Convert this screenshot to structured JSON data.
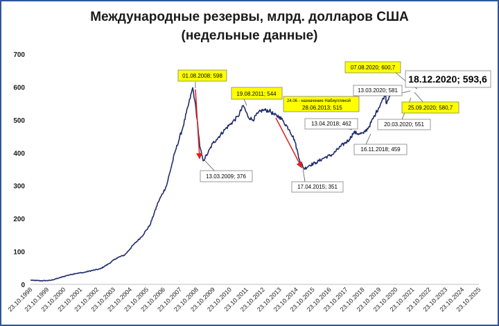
{
  "chart_data": {
    "type": "line",
    "title_line1": "Международные резервы, млрд. долларов США",
    "title_line2": "(недельные данные)",
    "xlabel": "",
    "ylabel": "",
    "ylim": [
      0,
      700
    ],
    "yticks": [
      "0",
      "100",
      "200",
      "300",
      "400",
      "500",
      "600",
      "700"
    ],
    "xticks": [
      "23.10.1998",
      "23.10.1999",
      "23.10.2000",
      "23.10.2001",
      "23.10.2002",
      "23.10.2003",
      "23.10.2004",
      "23.10.2005",
      "23.10.2006",
      "23.10.2007",
      "23.10.2008",
      "23.10.2009",
      "23.10.2010",
      "23.10.2011",
      "23.10.2012",
      "23.10.2013",
      "23.10.2014",
      "23.10.2015",
      "23.10.2016",
      "23.10.2017",
      "23.10.2018",
      "23.10.2019",
      "23.10.2020",
      "23.10.2021",
      "23.10.2022",
      "23.10.2023",
      "23.10.2024",
      "23.10.2025"
    ],
    "xlim": [
      1998.81,
      2025.81
    ],
    "grid": false,
    "series": [
      {
        "color": "#1f2a6b",
        "points": [
          [
            1998.81,
            13
          ],
          [
            1999.0,
            12
          ],
          [
            1999.5,
            11
          ],
          [
            2000.0,
            12
          ],
          [
            2000.5,
            19
          ],
          [
            2001.0,
            27
          ],
          [
            2001.5,
            33
          ],
          [
            2002.0,
            36
          ],
          [
            2002.5,
            42
          ],
          [
            2003.0,
            47
          ],
          [
            2003.5,
            62
          ],
          [
            2004.0,
            80
          ],
          [
            2004.5,
            90
          ],
          [
            2005.0,
            120
          ],
          [
            2005.5,
            145
          ],
          [
            2006.0,
            180
          ],
          [
            2006.5,
            250
          ],
          [
            2007.0,
            300
          ],
          [
            2007.5,
            400
          ],
          [
            2008.0,
            480
          ],
          [
            2008.58,
            598
          ],
          [
            2008.7,
            560
          ],
          [
            2008.85,
            500
          ],
          [
            2009.0,
            420
          ],
          [
            2009.2,
            376
          ],
          [
            2009.5,
            400
          ],
          [
            2009.8,
            430
          ],
          [
            2010.0,
            440
          ],
          [
            2010.5,
            470
          ],
          [
            2010.9,
            490
          ],
          [
            2011.3,
            510
          ],
          [
            2011.63,
            544
          ],
          [
            2011.9,
            510
          ],
          [
            2012.2,
            500
          ],
          [
            2012.5,
            520
          ],
          [
            2012.8,
            530
          ],
          [
            2013.2,
            528
          ],
          [
            2013.49,
            515
          ],
          [
            2013.8,
            510
          ],
          [
            2014.0,
            498
          ],
          [
            2014.4,
            470
          ],
          [
            2014.7,
            440
          ],
          [
            2015.0,
            380
          ],
          [
            2015.29,
            351
          ],
          [
            2015.6,
            362
          ],
          [
            2016.0,
            370
          ],
          [
            2016.5,
            385
          ],
          [
            2017.0,
            395
          ],
          [
            2017.5,
            420
          ],
          [
            2018.0,
            440
          ],
          [
            2018.28,
            462
          ],
          [
            2018.6,
            458
          ],
          [
            2018.87,
            459
          ],
          [
            2019.2,
            480
          ],
          [
            2019.6,
            520
          ],
          [
            2019.9,
            550
          ],
          [
            2020.2,
            581
          ],
          [
            2020.22,
            551
          ],
          [
            2020.4,
            570
          ],
          [
            2020.6,
            600.7
          ],
          [
            2020.73,
            580.7
          ],
          [
            2020.96,
            593.6
          ]
        ]
      }
    ],
    "annotations": {
      "peak_2008": "01.08.2008; 598",
      "low_2009": "13.03.2009; 376",
      "peak_2011": "19.08.2011; 544",
      "nabiullina_note": "24.06 - назначение Набиуллиной",
      "point_2013": "28.06.2013; 515",
      "low_2015": "17.04.2015; 351",
      "point_2018a": "13.04.2018; 462",
      "point_2018b": "16.11.2018; 459",
      "point_2020a": "13.03.2020; 581",
      "point_2020b": "20.03.2020; 551",
      "peak_2020": "07.08.2020; 600,7",
      "point_2020c": "25.09.2020; 580,7",
      "latest": "18.12.2020; 593,6"
    },
    "colors": {
      "line": "#1f2a6b",
      "highlight_box": "#ffff00",
      "arrow": "#e0201a",
      "frame": "#2f5597"
    }
  }
}
